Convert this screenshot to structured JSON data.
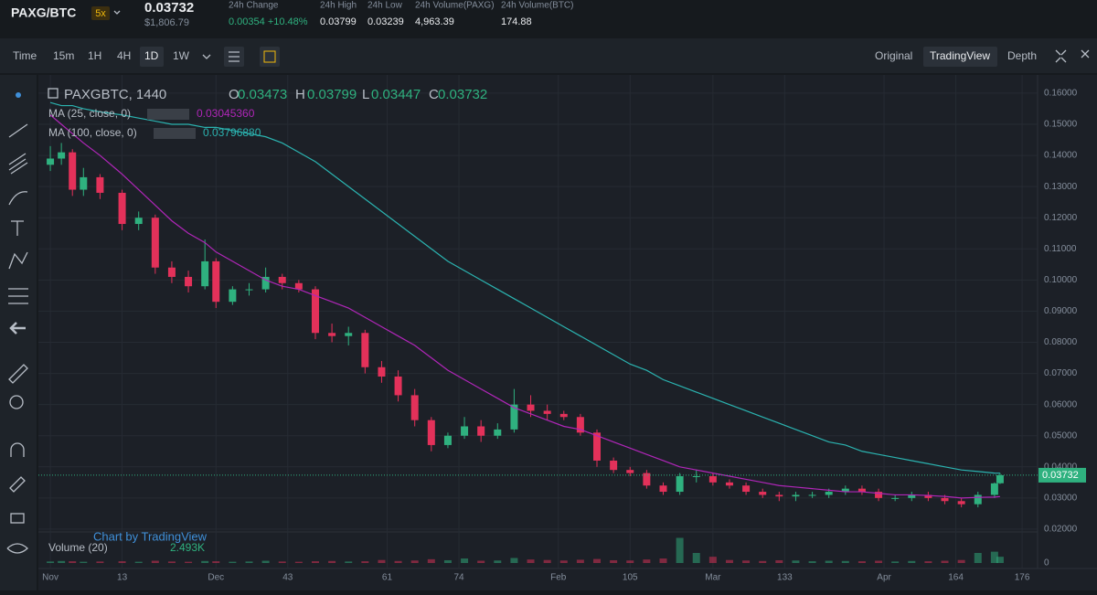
{
  "header": {
    "pair": "PAXG/BTC",
    "leverage": "5x",
    "price": "0.03732",
    "price_usd": "$1,806.79",
    "stats": [
      {
        "label": "24h Change",
        "value": "0.00354 +10.48%"
      },
      {
        "label": "24h High",
        "value": "0.03799"
      },
      {
        "label": "24h Low",
        "value": "0.03239"
      },
      {
        "label": "24h Volume(PAXG)",
        "value": "4,963.39"
      },
      {
        "label": "24h Volume(BTC)",
        "value": "174.88"
      }
    ]
  },
  "toolbar": {
    "intervals": [
      "Time",
      "15m",
      "1H",
      "4H",
      "1D",
      "1W"
    ],
    "views": [
      "Original",
      "TradingView",
      "Depth"
    ]
  },
  "watermark": "Chart by TradingView",
  "chart_data": {
    "type": "candlestick",
    "title": "PAXGBTC, 1440",
    "ohlc_legend": [
      {
        "label": "O",
        "value": 0.03473
      },
      {
        "label": "H",
        "value": 0.03799
      },
      {
        "label": "L",
        "value": 0.03447
      },
      {
        "label": "C",
        "value": 0.03732
      }
    ],
    "up_color": "#2fb17f",
    "down_color": "#e3315a",
    "grid": true,
    "x": [
      0,
      2,
      4,
      6,
      9,
      13,
      16,
      19,
      22,
      25,
      28,
      30,
      33,
      36,
      39,
      42,
      45,
      48,
      51,
      54,
      57,
      60,
      63,
      66,
      69,
      72,
      75,
      78,
      81,
      84,
      87,
      90,
      93,
      96,
      99,
      102,
      105,
      108,
      111,
      114,
      117,
      120,
      123,
      126,
      129,
      132,
      135,
      138,
      141,
      144,
      147,
      150,
      153,
      156,
      159,
      162,
      165,
      168,
      171,
      172
    ],
    "open": [
      0.137,
      0.139,
      0.141,
      0.129,
      0.133,
      0.128,
      0.118,
      0.12,
      0.104,
      0.101,
      0.098,
      0.106,
      0.093,
      0.097,
      0.097,
      0.101,
      0.099,
      0.097,
      0.083,
      0.082,
      0.083,
      0.072,
      0.069,
      0.063,
      0.055,
      0.047,
      0.05,
      0.053,
      0.05,
      0.052,
      0.06,
      0.058,
      0.057,
      0.056,
      0.051,
      0.042,
      0.039,
      0.038,
      0.034,
      0.032,
      0.037,
      0.037,
      0.035,
      0.034,
      0.032,
      0.031,
      0.0305,
      0.031,
      0.031,
      0.032,
      0.033,
      0.032,
      0.03,
      0.03,
      0.031,
      0.03,
      0.029,
      0.028,
      0.031,
      0.03473
    ],
    "high": [
      0.143,
      0.144,
      0.142,
      0.136,
      0.134,
      0.129,
      0.122,
      0.121,
      0.106,
      0.103,
      0.113,
      0.107,
      0.098,
      0.099,
      0.104,
      0.102,
      0.1,
      0.098,
      0.086,
      0.085,
      0.084,
      0.074,
      0.071,
      0.065,
      0.056,
      0.051,
      0.056,
      0.055,
      0.054,
      0.065,
      0.063,
      0.06,
      0.058,
      0.057,
      0.052,
      0.043,
      0.04,
      0.039,
      0.035,
      0.038,
      0.039,
      0.038,
      0.036,
      0.035,
      0.033,
      0.032,
      0.032,
      0.032,
      0.033,
      0.034,
      0.034,
      0.033,
      0.031,
      0.032,
      0.032,
      0.031,
      0.03,
      0.032,
      0.035,
      0.03799
    ],
    "low": [
      0.135,
      0.137,
      0.127,
      0.127,
      0.126,
      0.116,
      0.116,
      0.102,
      0.099,
      0.096,
      0.097,
      0.091,
      0.092,
      0.095,
      0.096,
      0.097,
      0.096,
      0.081,
      0.08,
      0.079,
      0.07,
      0.067,
      0.061,
      0.053,
      0.045,
      0.046,
      0.049,
      0.048,
      0.049,
      0.051,
      0.056,
      0.055,
      0.055,
      0.05,
      0.04,
      0.038,
      0.037,
      0.033,
      0.031,
      0.031,
      0.035,
      0.034,
      0.033,
      0.031,
      0.03,
      0.029,
      0.029,
      0.03,
      0.03,
      0.031,
      0.031,
      0.029,
      0.029,
      0.029,
      0.029,
      0.028,
      0.027,
      0.027,
      0.03,
      0.03447
    ],
    "close": [
      0.139,
      0.141,
      0.129,
      0.133,
      0.128,
      0.118,
      0.12,
      0.104,
      0.101,
      0.098,
      0.106,
      0.093,
      0.097,
      0.097,
      0.101,
      0.099,
      0.097,
      0.083,
      0.082,
      0.083,
      0.072,
      0.069,
      0.063,
      0.055,
      0.047,
      0.05,
      0.053,
      0.05,
      0.052,
      0.06,
      0.058,
      0.057,
      0.056,
      0.051,
      0.042,
      0.039,
      0.038,
      0.034,
      0.032,
      0.037,
      0.037,
      0.035,
      0.034,
      0.032,
      0.031,
      0.0305,
      0.031,
      0.031,
      0.032,
      0.033,
      0.032,
      0.03,
      0.03,
      0.031,
      0.03,
      0.029,
      0.028,
      0.031,
      0.0347,
      0.03732
    ],
    "overlays": [
      {
        "name": "MA (25, close, 0)",
        "color": "#b026b8",
        "value_label": "0.03045360",
        "values": [
          0.153,
          0.15,
          0.147,
          0.144,
          0.14,
          0.134,
          0.129,
          0.124,
          0.119,
          0.115,
          0.112,
          0.109,
          0.106,
          0.103,
          0.1,
          0.098,
          0.097,
          0.095,
          0.093,
          0.091,
          0.088,
          0.085,
          0.082,
          0.079,
          0.075,
          0.071,
          0.068,
          0.065,
          0.062,
          0.059,
          0.057,
          0.055,
          0.053,
          0.052,
          0.05,
          0.048,
          0.046,
          0.044,
          0.042,
          0.04,
          0.039,
          0.038,
          0.037,
          0.036,
          0.035,
          0.034,
          0.0335,
          0.033,
          0.0325,
          0.032,
          0.032,
          0.0315,
          0.031,
          0.031,
          0.0308,
          0.0305,
          0.03,
          0.0302,
          0.0303,
          0.0304536
        ]
      },
      {
        "name": "MA (100, close, 0)",
        "color": "#2bb3b0",
        "value_label": "0.03796880",
        "values": [
          0.157,
          0.156,
          0.156,
          0.155,
          0.154,
          0.153,
          0.152,
          0.151,
          0.15,
          0.15,
          0.149,
          0.149,
          0.148,
          0.147,
          0.146,
          0.144,
          0.141,
          0.138,
          0.134,
          0.13,
          0.126,
          0.122,
          0.118,
          0.114,
          0.11,
          0.106,
          0.103,
          0.1,
          0.097,
          0.094,
          0.091,
          0.088,
          0.085,
          0.082,
          0.079,
          0.076,
          0.073,
          0.071,
          0.068,
          0.066,
          0.064,
          0.062,
          0.06,
          0.058,
          0.056,
          0.054,
          0.052,
          0.05,
          0.048,
          0.047,
          0.045,
          0.044,
          0.043,
          0.042,
          0.041,
          0.04,
          0.039,
          0.0385,
          0.038,
          0.0379688
        ]
      }
    ],
    "volume": {
      "name": "Volume (20)",
      "value_label": "2.493K",
      "ylim": [
        0,
        12
      ],
      "yticks": [
        0
      ],
      "values": [
        0.6,
        0.8,
        0.7,
        0.5,
        0.6,
        0.7,
        0.5,
        0.9,
        0.6,
        0.5,
        0.8,
        0.7,
        0.5,
        0.6,
        0.9,
        0.6,
        0.5,
        0.7,
        0.8,
        0.6,
        0.7,
        1.2,
        0.8,
        1.0,
        1.5,
        1.1,
        1.8,
        0.9,
        1.0,
        2.0,
        1.4,
        1.2,
        1.0,
        1.3,
        1.6,
        1.1,
        1.0,
        1.4,
        1.8,
        10.0,
        4.0,
        2.5,
        1.2,
        1.0,
        0.8,
        1.1,
        1.0,
        0.7,
        0.9,
        0.8,
        0.7,
        0.9,
        0.6,
        0.8,
        0.7,
        0.9,
        1.2,
        4.0,
        4.5,
        2.493
      ]
    },
    "xlim": [
      -1.5,
      178.8
    ],
    "xticks": [
      {
        "value": 0,
        "label": "Nov"
      },
      13,
      {
        "value": 30,
        "label": "Dec"
      },
      43,
      61,
      74,
      {
        "value": 92,
        "label": "Feb"
      },
      105,
      {
        "value": 120,
        "label": "Mar"
      },
      133,
      {
        "value": 151,
        "label": "Apr"
      },
      164,
      176
    ],
    "ylim": [
      0.0191,
      0.1635
    ],
    "yticks": [
      {
        "value": 0.02,
        "label": "0.02000"
      },
      {
        "value": 0.03,
        "label": "0.03000"
      },
      {
        "value": 0.04,
        "label": "0.04000"
      },
      {
        "value": 0.05,
        "label": "0.05000"
      },
      {
        "value": 0.06,
        "label": "0.06000"
      },
      {
        "value": 0.07,
        "label": "0.07000"
      },
      {
        "value": 0.08,
        "label": "0.08000"
      },
      {
        "value": 0.09,
        "label": "0.09000"
      },
      {
        "value": 0.1,
        "label": "0.10000"
      },
      {
        "value": 0.11,
        "label": "0.11000"
      },
      {
        "value": 0.12,
        "label": "0.12000"
      },
      {
        "value": 0.13,
        "label": "0.13000"
      },
      {
        "value": 0.14,
        "label": "0.14000"
      },
      {
        "value": 0.15,
        "label": "0.15000"
      },
      {
        "value": 0.16,
        "label": "0.16000"
      }
    ]
  }
}
